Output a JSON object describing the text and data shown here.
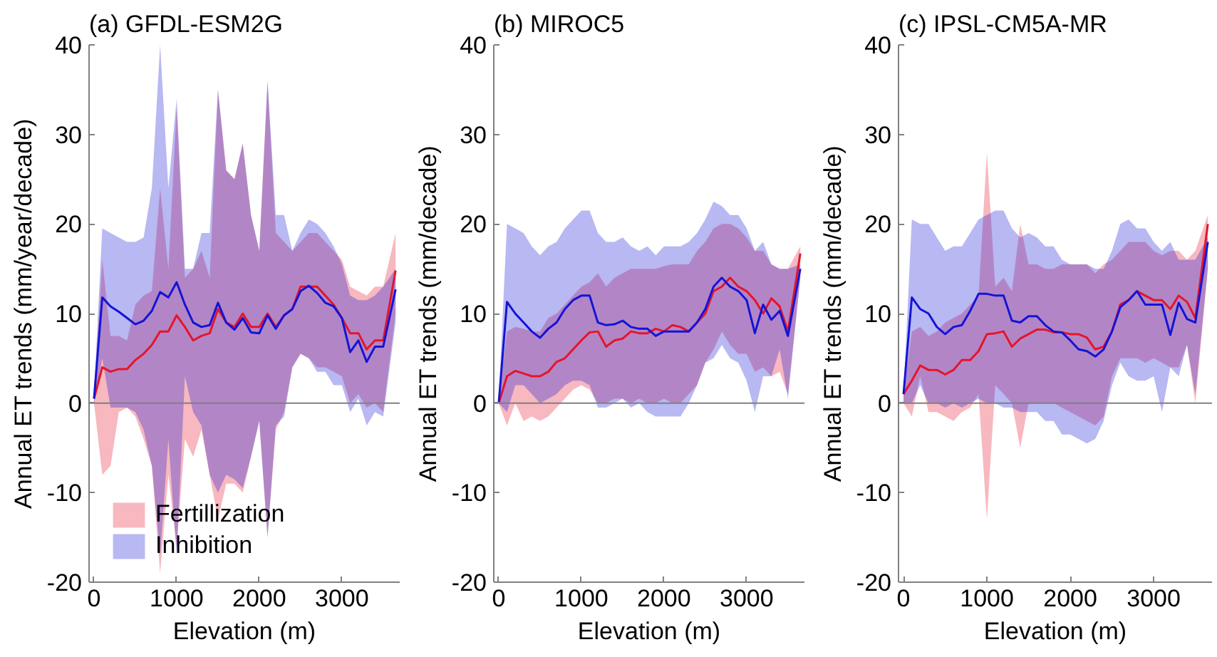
{
  "chart_data": [
    {
      "type": "line",
      "title": "(a) GFDL-ESM2G",
      "xlabel": "Elevation (m)",
      "ylabel": "Annual ET trends (mm/year/decade)",
      "xlim": [
        -60,
        3700
      ],
      "xticks": [
        0,
        1000,
        2000,
        3000
      ],
      "ylim": [
        -20,
        40
      ],
      "yticks": [
        -20,
        -10,
        0,
        10,
        20,
        30,
        40
      ],
      "grid": false,
      "legend": "bottom left",
      "marker": "none",
      "line_style": "solid",
      "ref_lines": [
        {
          "axis": "y",
          "value": 0,
          "color": "#808080"
        }
      ],
      "x": [
        0,
        100,
        200,
        300,
        400,
        500,
        600,
        700,
        800,
        900,
        1000,
        1100,
        1200,
        1300,
        1400,
        1500,
        1600,
        1700,
        1800,
        1900,
        2000,
        2100,
        2200,
        2300,
        2400,
        2500,
        2600,
        2700,
        2800,
        2900,
        3000,
        3100,
        3200,
        3300,
        3400,
        3500,
        3650
      ],
      "series": [
        {
          "name": "Fertillization",
          "color": "#e6142a",
          "values": [
            0.5,
            4,
            3.5,
            3.8,
            3.8,
            4.8,
            5.5,
            6.5,
            8,
            8,
            9.8,
            8.5,
            7,
            7.5,
            7.8,
            10.5,
            9,
            8.5,
            10,
            8.5,
            8.5,
            10,
            8.5,
            9.8,
            10.5,
            13,
            13,
            13,
            12,
            11,
            9.5,
            7.8,
            7.8,
            6,
            7,
            7,
            14.8
          ],
          "lower": [
            0,
            -8,
            -7,
            -1,
            -0.5,
            -1.5,
            -4,
            -7,
            -19,
            -8,
            -16,
            -4,
            -6,
            -3,
            -8,
            -13,
            -9,
            -9,
            -10,
            -6,
            -2,
            -15,
            -3,
            -1,
            4,
            5.5,
            5,
            4,
            4,
            3.5,
            3,
            0,
            1,
            -0.5,
            0,
            -1,
            10
          ],
          "upper": [
            1,
            16,
            7.5,
            7.5,
            7,
            11,
            12,
            12.5,
            24,
            15,
            33,
            14,
            15,
            17,
            14,
            35,
            26,
            25,
            29,
            21,
            17,
            36,
            19,
            18,
            17,
            18,
            19,
            19,
            18,
            17,
            16,
            13,
            12.5,
            12,
            13,
            13,
            19
          ]
        },
        {
          "name": "Inhibition",
          "color": "#1414d6",
          "values": [
            0.5,
            11.8,
            10.8,
            10.2,
            9.5,
            8.8,
            9.2,
            10.3,
            12.4,
            11.8,
            13.5,
            11,
            9,
            8.5,
            8.7,
            11.2,
            9,
            8.2,
            9.5,
            7.9,
            7.8,
            9.8,
            8.3,
            9.8,
            10.5,
            12.5,
            13.1,
            12.3,
            11.2,
            10.8,
            9.5,
            5.7,
            7,
            4.6,
            6.3,
            6.3,
            12.7
          ],
          "lower": [
            0,
            5,
            -0.5,
            -0.5,
            -0.5,
            -1,
            -3,
            -7,
            -17,
            -4,
            -17,
            3,
            -1,
            -2.5,
            -8,
            -10,
            -8,
            -8.5,
            -9.5,
            -6,
            -2,
            -15,
            -2.5,
            -1.5,
            4,
            5.5,
            5,
            3.5,
            3.5,
            2,
            2,
            -1,
            0.5,
            -2.5,
            -1,
            -1.5,
            9
          ],
          "upper": [
            1,
            19.5,
            19,
            18.5,
            18,
            18,
            18.5,
            24,
            40,
            24,
            34,
            15,
            15,
            19,
            19,
            35,
            26,
            25,
            29,
            21,
            17,
            36,
            21,
            21,
            17,
            19,
            20.5,
            20,
            19,
            17.5,
            15.5,
            12,
            11.5,
            11.5,
            12,
            13,
            15
          ]
        }
      ]
    },
    {
      "type": "line",
      "title": "(b) MIROC5",
      "xlabel": "Elevation (m)",
      "ylabel": "Annual ET trends (mm/decade)",
      "xlim": [
        -60,
        3700
      ],
      "xticks": [
        0,
        1000,
        2000,
        3000
      ],
      "ylim": [
        -20,
        40
      ],
      "yticks": [
        -20,
        -10,
        0,
        10,
        20,
        30,
        40
      ],
      "grid": false,
      "legend": false,
      "marker": "none",
      "line_style": "solid",
      "ref_lines": [
        {
          "axis": "y",
          "value": 0,
          "color": "#808080"
        }
      ],
      "x": [
        0,
        100,
        200,
        300,
        400,
        500,
        600,
        700,
        800,
        900,
        1000,
        1100,
        1200,
        1300,
        1400,
        1500,
        1600,
        1700,
        1800,
        1900,
        2000,
        2100,
        2200,
        2300,
        2400,
        2500,
        2600,
        2700,
        2800,
        2900,
        3000,
        3100,
        3200,
        3300,
        3400,
        3500,
        3650
      ],
      "series": [
        {
          "color": "#e6142a",
          "values": [
            0,
            3,
            3.6,
            3.3,
            3,
            3,
            3.5,
            4.6,
            5,
            6,
            7,
            7.9,
            8,
            6.3,
            7,
            7.2,
            8,
            7.8,
            7.8,
            8.3,
            8,
            8.7,
            8.5,
            8,
            9,
            10,
            12.5,
            13,
            14,
            13,
            12.5,
            11.5,
            10,
            11.7,
            10.8,
            8,
            16.7
          ],
          "lower": [
            0,
            -2.5,
            0,
            -2,
            -1.5,
            -2,
            -1.5,
            -0.5,
            0.5,
            1.5,
            2,
            1.5,
            0,
            0,
            0.5,
            0.5,
            0,
            0.5,
            0,
            0,
            0.5,
            0,
            0,
            1,
            2,
            4.5,
            6,
            8,
            6.5,
            5.5,
            5.5,
            3.5,
            4,
            3,
            3.5,
            1,
            14
          ],
          "upper": [
            0.5,
            8,
            8.5,
            8.3,
            8,
            8,
            9.5,
            10,
            11,
            12,
            13,
            13.5,
            14.5,
            13,
            14,
            14.5,
            15,
            15,
            15,
            15,
            15.3,
            15.5,
            15.5,
            15.5,
            17,
            18,
            19.5,
            20,
            20,
            19.5,
            18.5,
            17,
            17,
            15.5,
            15,
            15,
            17.5
          ]
        },
        {
          "color": "#1414d6",
          "values": [
            0,
            11.3,
            10,
            9,
            8,
            7.3,
            8.3,
            9,
            10.5,
            11.5,
            12,
            12,
            9,
            8.7,
            8.8,
            9.2,
            8.5,
            8.3,
            8.3,
            7.5,
            8,
            8,
            8,
            8,
            9,
            10.5,
            13,
            14,
            13,
            12.5,
            11.5,
            7.8,
            11,
            9.3,
            10.3,
            7.5,
            15
          ],
          "lower": [
            0,
            -1,
            2,
            2,
            1,
            0,
            0.5,
            1,
            2,
            2.5,
            2.5,
            2,
            -0.5,
            -0.5,
            0,
            0.5,
            -0.5,
            0,
            -1,
            -1.5,
            -1.5,
            -1.5,
            -1.5,
            0,
            2,
            4.5,
            5,
            6.5,
            5,
            4.5,
            2.5,
            -1,
            3,
            3,
            6,
            0.5,
            14
          ],
          "upper": [
            0.5,
            20,
            19.5,
            19,
            17.5,
            16.5,
            17.5,
            18,
            19.5,
            20.5,
            21.5,
            21.5,
            19,
            18,
            18,
            18.5,
            17.5,
            17,
            17.5,
            16.5,
            17.5,
            17.5,
            17.5,
            18,
            19,
            20.5,
            22.5,
            22,
            21,
            21,
            19.5,
            17,
            18,
            15.5,
            15,
            15,
            15.5
          ]
        }
      ]
    },
    {
      "type": "line",
      "title": "(c) IPSL-CM5A-MR",
      "xlabel": "Elevation (m)",
      "ylabel": "Annual ET trends (mm/decade)",
      "xlim": [
        -60,
        3700
      ],
      "xticks": [
        0,
        1000,
        2000,
        3000
      ],
      "ylim": [
        -20,
        40
      ],
      "yticks": [
        -20,
        -10,
        0,
        10,
        20,
        30,
        40
      ],
      "grid": false,
      "legend": false,
      "marker": "none",
      "line_style": "solid",
      "ref_lines": [
        {
          "axis": "y",
          "value": 0,
          "color": "#808080"
        }
      ],
      "x": [
        0,
        100,
        200,
        300,
        400,
        500,
        600,
        700,
        800,
        900,
        1000,
        1100,
        1200,
        1300,
        1400,
        1500,
        1600,
        1700,
        1800,
        1900,
        2000,
        2100,
        2200,
        2300,
        2400,
        2500,
        2600,
        2700,
        2800,
        2900,
        3000,
        3100,
        3200,
        3300,
        3400,
        3500,
        3650
      ],
      "series": [
        {
          "color": "#e6142a",
          "values": [
            1,
            2.5,
            4.2,
            3.7,
            3.7,
            3.2,
            3.7,
            4.8,
            4.8,
            5.8,
            7.7,
            7.8,
            8,
            6.3,
            7.2,
            7.7,
            8.2,
            8.2,
            7.9,
            7.9,
            7.7,
            7.7,
            7.3,
            6,
            6.3,
            8,
            11,
            11.5,
            12.5,
            12,
            11.5,
            11.5,
            10.5,
            12,
            11.3,
            9.5,
            20
          ],
          "lower": [
            0,
            -1.5,
            3,
            -1,
            -1,
            -1.5,
            -2,
            -1,
            -0.5,
            1,
            -13,
            2,
            1,
            0,
            -5,
            0,
            0,
            0,
            0,
            -0.5,
            -1,
            -1.5,
            -2,
            -2.5,
            -1.5,
            3,
            5,
            5,
            5,
            4.5,
            5,
            4.5,
            4,
            4,
            6.5,
            0,
            15
          ],
          "upper": [
            1,
            8,
            8.5,
            7.5,
            8,
            9,
            9.5,
            10,
            11,
            12,
            28,
            13,
            14,
            12.5,
            20,
            15.5,
            15.5,
            15,
            15,
            15.5,
            15.5,
            15.5,
            15.5,
            14.5,
            15.5,
            16,
            17,
            18,
            18,
            18,
            17,
            16.5,
            17,
            17,
            16,
            17,
            21
          ]
        },
        {
          "color": "#1414d6",
          "values": [
            1,
            11.8,
            10.5,
            10,
            8.5,
            7.7,
            8.5,
            8.7,
            10.3,
            12.2,
            12.2,
            12,
            12,
            9.2,
            9,
            9.7,
            9.7,
            8.7,
            8,
            7.9,
            7,
            6,
            5.8,
            5.2,
            6,
            8,
            10.7,
            11.5,
            12.5,
            11,
            11,
            11,
            7.6,
            11.2,
            9.4,
            9,
            18
          ],
          "lower": [
            0,
            0,
            2,
            0,
            0,
            -0.5,
            0,
            -0.5,
            0,
            0.5,
            0,
            0,
            -0.5,
            -0.5,
            -1,
            -1,
            -1,
            -2,
            -2,
            -3.5,
            -3.5,
            -4,
            -4.5,
            -4,
            -2,
            2,
            4.5,
            3,
            2.5,
            2.5,
            3,
            -1,
            4,
            3,
            6.5,
            1,
            15
          ],
          "upper": [
            1,
            20.5,
            20,
            20,
            18.5,
            17,
            17.5,
            17.5,
            19,
            20.5,
            21,
            21.5,
            21.5,
            19.5,
            18.5,
            19,
            18.5,
            17.5,
            17.5,
            16,
            15.5,
            15.5,
            15.5,
            15,
            15,
            17,
            20,
            20.5,
            19.5,
            19.5,
            18,
            17,
            18,
            16,
            16,
            16,
            18.5
          ]
        }
      ]
    }
  ]
}
